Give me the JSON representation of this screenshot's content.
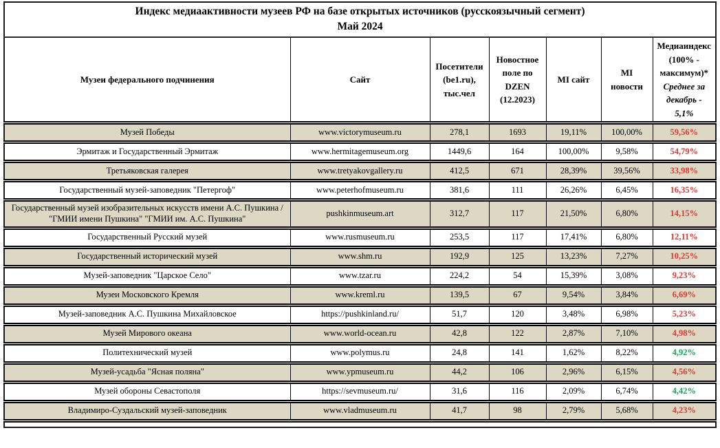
{
  "title": {
    "line1": "Индекс медиаактивности музеев РФ на базе открытых источников (русскоязычный сегмент)",
    "line2": "Май 2024"
  },
  "table": {
    "columns": [
      {
        "label": "Музеи федерального подчинения"
      },
      {
        "label": "Сайт"
      },
      {
        "label": "Посетители (be1.ru), тыс.чел"
      },
      {
        "label": "Новостное поле по DZEN (12.2023)"
      },
      {
        "label": "MI сайт"
      },
      {
        "label": "MI новости"
      },
      {
        "label_main": "Медиаиндекс (100% - максимум)*",
        "label_note": "Среднее за декабрь - 5,1%"
      }
    ],
    "rows": [
      {
        "name": "Музей Победы",
        "site": "www.victorymuseum.ru",
        "visitors": "278,1",
        "news_field": "1693",
        "mi_site": "19,11%",
        "mi_news": "100,00%",
        "media_index": "59,56%",
        "index_color": "red",
        "shaded": true
      },
      {
        "name": "Эрмитаж и Государственный Эрмитаж",
        "site": "www.hermitagemuseum.org",
        "visitors": "1449,6",
        "news_field": "164",
        "mi_site": "100,00%",
        "mi_news": "9,58%",
        "media_index": "54,79%",
        "index_color": "red",
        "shaded": false
      },
      {
        "name": "Третьяковская галерея",
        "site": "www.tretyakovgallery.ru",
        "visitors": "412,5",
        "news_field": "671",
        "mi_site": "28,39%",
        "mi_news": "39,56%",
        "media_index": "33,98%",
        "index_color": "red",
        "shaded": true
      },
      {
        "name": "Государственный музей-заповедник \"Петергоф\"",
        "site": "www.peterhofmuseum.ru",
        "visitors": "381,6",
        "news_field": "111",
        "mi_site": "26,26%",
        "mi_news": "6,45%",
        "media_index": "16,35%",
        "index_color": "red",
        "shaded": false
      },
      {
        "name": "Государственный музей изобразительных искусств имени А.С. Пушкина / \"ГМИИ имени Пушкина\" \"ГМИИ им. А.С. Пушкина\"",
        "site": "pushkinmuseum.art",
        "visitors": "312,7",
        "news_field": "117",
        "mi_site": "21,50%",
        "mi_news": "6,80%",
        "media_index": "14,15%",
        "index_color": "red",
        "shaded": true
      },
      {
        "name": "Государственный Русский музей",
        "site": "www.rusmuseum.ru",
        "visitors": "253,5",
        "news_field": "117",
        "mi_site": "17,41%",
        "mi_news": "6,80%",
        "media_index": "12,11%",
        "index_color": "red",
        "shaded": false
      },
      {
        "name": "Государственный исторический музей",
        "site": "www.shm.ru",
        "visitors": "192,9",
        "news_field": "125",
        "mi_site": "13,23%",
        "mi_news": "7,27%",
        "media_index": "10,25%",
        "index_color": "red",
        "shaded": true
      },
      {
        "name": "Музей-заповедник \"Царское Село\"",
        "site": "www.tzar.ru",
        "visitors": "224,2",
        "news_field": "54",
        "mi_site": "15,39%",
        "mi_news": "3,08%",
        "media_index": "9,23%",
        "index_color": "red",
        "shaded": false
      },
      {
        "name": "Музеи Московского Кремля",
        "site": "www.kreml.ru",
        "visitors": "139,5",
        "news_field": "67",
        "mi_site": "9,54%",
        "mi_news": "3,84%",
        "media_index": "6,69%",
        "index_color": "red",
        "shaded": true
      },
      {
        "name": "Музей-заповедник А.С. Пушкина Михайловское",
        "site": "https://pushkinland.ru/",
        "visitors": "51,7",
        "news_field": "120",
        "mi_site": "3,48%",
        "mi_news": "6,98%",
        "media_index": "5,23%",
        "index_color": "red",
        "shaded": false
      },
      {
        "name": "Музей Мирового океана",
        "site": "www.world-ocean.ru",
        "visitors": "42,8",
        "news_field": "122",
        "mi_site": "2,87%",
        "mi_news": "7,10%",
        "media_index": "4,98%",
        "index_color": "red",
        "shaded": true
      },
      {
        "name": "Политехнический музей",
        "site": "www.polymus.ru",
        "visitors": "24,8",
        "news_field": "141",
        "mi_site": "1,62%",
        "mi_news": "8,22%",
        "media_index": "4,92%",
        "index_color": "green",
        "shaded": false
      },
      {
        "name": "Музей-усадьба \"Ясная поляна\"",
        "site": "www.ypmuseum.ru",
        "visitors": "44,2",
        "news_field": "106",
        "mi_site": "2,96%",
        "mi_news": "6,15%",
        "media_index": "4,56%",
        "index_color": "red",
        "shaded": true
      },
      {
        "name": "Музей обороны Севастополя",
        "site": "https://sevmuseum.ru/",
        "visitors": "31,6",
        "news_field": "116",
        "mi_site": "2,09%",
        "mi_news": "6,74%",
        "media_index": "4,42%",
        "index_color": "green",
        "shaded": false
      },
      {
        "name": "Владимиро-Суздальский музей-заповедник",
        "site": "www.vladmuseum.ru",
        "visitors": "41,7",
        "news_field": "98",
        "mi_site": "2,79%",
        "mi_news": "5,68%",
        "media_index": "4,23%",
        "index_color": "red",
        "shaded": true
      }
    ]
  },
  "colors": {
    "row_shade": "#dcd8c4",
    "index_red": "#e8342c",
    "index_green": "#00b050",
    "border": "#000000"
  }
}
